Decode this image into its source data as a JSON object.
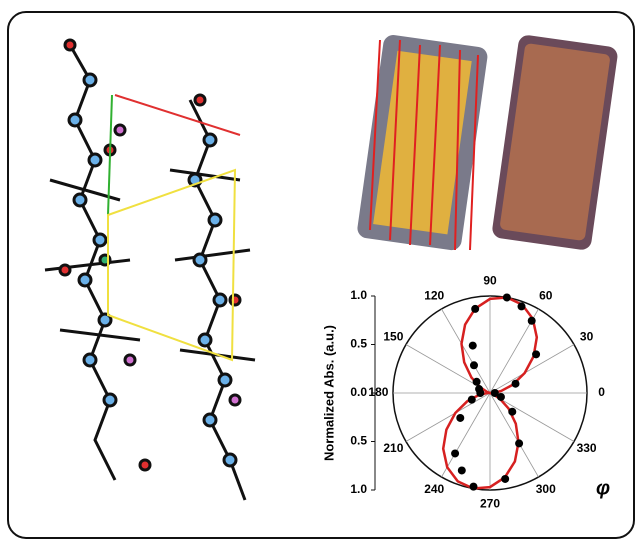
{
  "chart_data": {
    "type": "polar",
    "ylabel": "Normalized Abs. (a.u.)",
    "angle_label": "φ",
    "yticks": [
      {
        "value": 1,
        "label": "1.0"
      },
      {
        "value": 0.5,
        "label": "0.5"
      },
      {
        "value": 0,
        "label": "0.0"
      },
      {
        "value": -0.5,
        "label": "0.5"
      },
      {
        "value": -1,
        "label": "1.0"
      }
    ],
    "ylim": [
      -1,
      1
    ],
    "thetaticks": [
      0,
      30,
      60,
      90,
      120,
      150,
      180,
      210,
      240,
      270,
      300,
      330
    ],
    "points": {
      "color": "#000000",
      "theta": [
        0,
        20,
        40,
        60,
        70,
        80,
        100,
        110,
        120,
        140,
        160,
        180,
        200,
        220,
        240,
        250,
        260,
        280,
        300,
        320,
        340
      ],
      "r": [
        0.05,
        0.28,
        0.62,
        0.86,
        0.95,
        1.0,
        0.88,
        0.52,
        0.33,
        0.18,
        0.12,
        0.1,
        0.2,
        0.4,
        0.72,
        0.85,
        0.98,
        0.9,
        0.6,
        0.3,
        0.12
      ]
    },
    "fit": {
      "color": "#d62020",
      "theta": [
        0,
        10,
        20,
        30,
        40,
        50,
        60,
        70,
        80,
        90,
        100,
        110,
        120,
        130,
        140,
        150,
        160,
        170,
        180,
        190,
        200,
        210,
        220,
        230,
        240,
        250,
        260,
        270,
        280,
        290,
        300,
        310,
        320,
        330,
        340,
        350,
        360
      ],
      "r": [
        0.03,
        0.117,
        0.25,
        0.413,
        0.587,
        0.75,
        0.883,
        0.97,
        1.0,
        0.97,
        0.883,
        0.75,
        0.587,
        0.413,
        0.25,
        0.117,
        0.03,
        0.0,
        0.03,
        0.117,
        0.25,
        0.413,
        0.587,
        0.75,
        0.883,
        0.97,
        1.0,
        0.97,
        0.883,
        0.75,
        0.587,
        0.413,
        0.25,
        0.117,
        0.03,
        0.0,
        0.03
      ]
    }
  }
}
